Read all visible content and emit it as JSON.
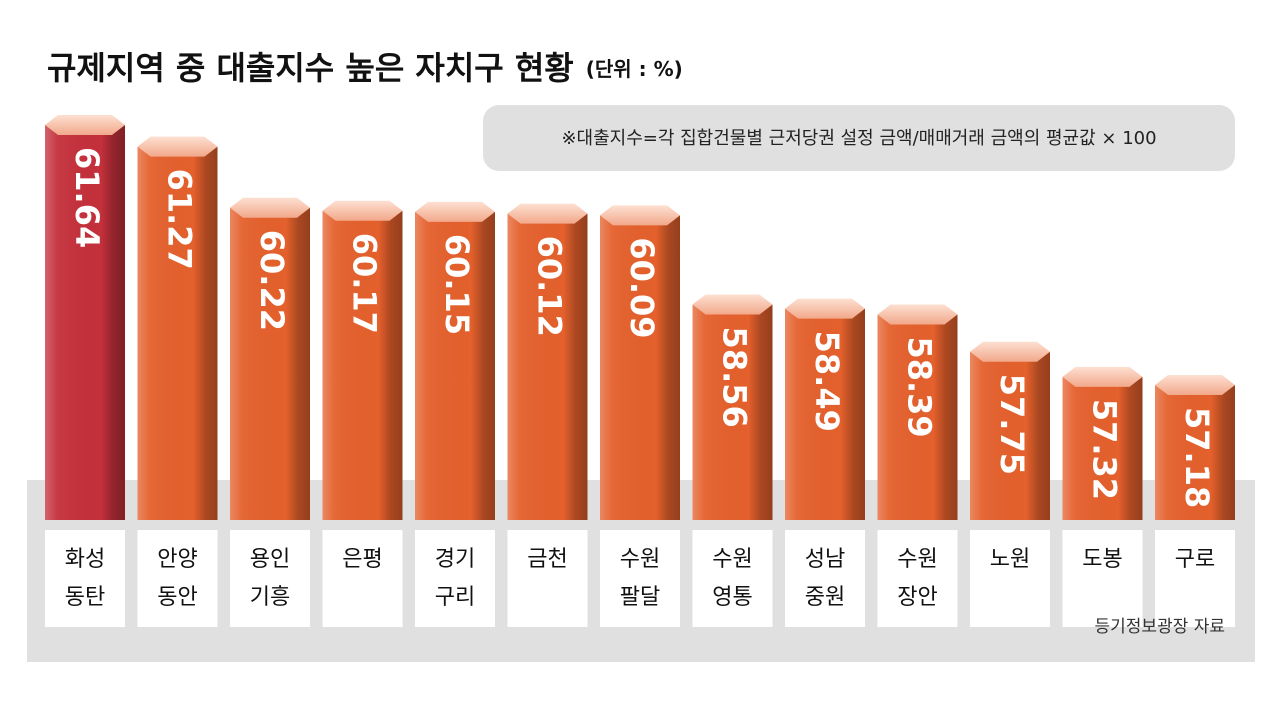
{
  "chart_data": {
    "type": "bar",
    "title": "규제지역 중 대출지수 높은 자치구 현황",
    "subtitle": "(단위 : %)",
    "note": "※대출지수=각 집합건물별 근저당권 설정 금액/매매거래 금액의 평균값 × 100",
    "source": "등기정보광장 자료",
    "categories": [
      [
        "화성",
        "동탄"
      ],
      [
        "안양",
        "동안"
      ],
      [
        "용인",
        "기흥"
      ],
      [
        "은평"
      ],
      [
        "경기",
        "구리"
      ],
      [
        "금천"
      ],
      [
        "수원",
        "팔달"
      ],
      [
        "수원",
        "영통"
      ],
      [
        "성남",
        "중원"
      ],
      [
        "수원",
        "장안"
      ],
      [
        "노원"
      ],
      [
        "도봉"
      ],
      [
        "구로"
      ]
    ],
    "values": [
      61.64,
      61.27,
      60.22,
      60.17,
      60.15,
      60.12,
      60.09,
      58.56,
      58.49,
      58.39,
      57.75,
      57.32,
      57.18
    ],
    "colors": [
      "#c4303b",
      "#e4602c",
      "#e4602c",
      "#e4602c",
      "#e4602c",
      "#e4602c",
      "#e4602c",
      "#e4602c",
      "#e4602c",
      "#e4602c",
      "#e4602c",
      "#e4602c",
      "#e4602c"
    ]
  }
}
